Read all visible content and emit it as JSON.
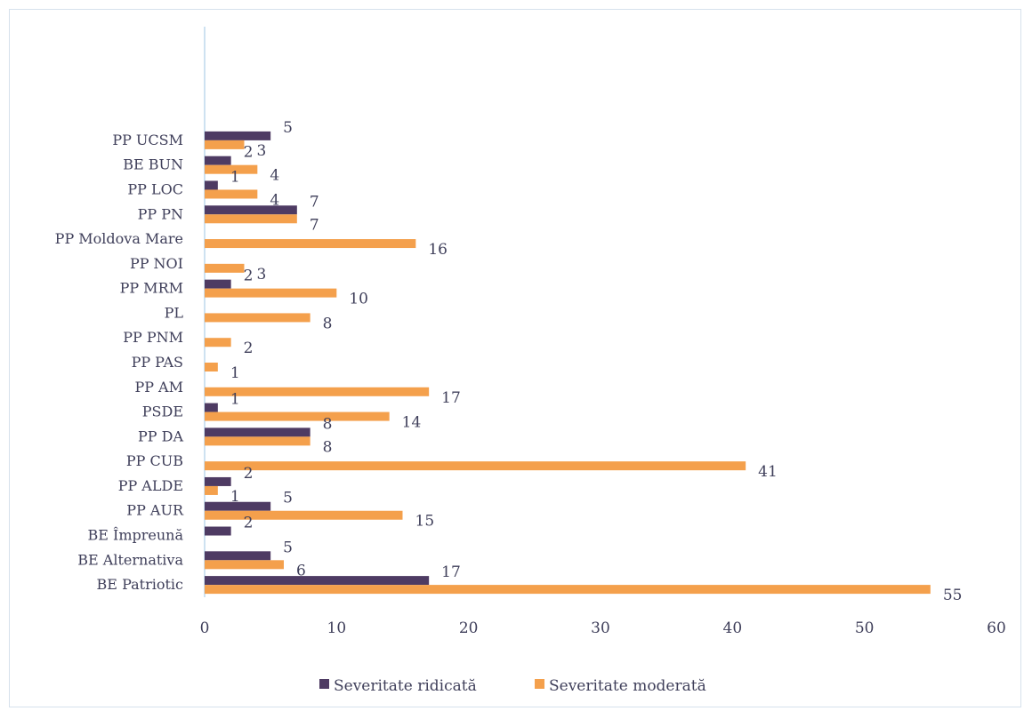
{
  "chart_data": {
    "type": "bar",
    "orientation": "horizontal",
    "categories": [
      "BE Patriotic",
      "BE Alternativa",
      "BE Împreună",
      "PP AUR",
      "PP ALDE",
      "PP CUB",
      "PP DA",
      "PSDE",
      "PP AM",
      "PP PAS",
      "PP PNM",
      "PL",
      "PP MRM",
      "PP NOI",
      "PP Moldova Mare",
      "PP PN",
      "PP LOC",
      "BE BUN",
      "PP UCSM"
    ],
    "series": [
      {
        "name": "Severitate ridicată",
        "color": "#4e3b63",
        "values": [
          17,
          5,
          2,
          5,
          2,
          null,
          8,
          1,
          null,
          null,
          null,
          null,
          2,
          null,
          null,
          7,
          1,
          2,
          5
        ]
      },
      {
        "name": "Severitate moderată",
        "color": "#f4a04c",
        "values": [
          55,
          6,
          null,
          15,
          1,
          41,
          8,
          14,
          17,
          1,
          2,
          8,
          10,
          3,
          16,
          7,
          4,
          4,
          3
        ]
      }
    ],
    "x_ticks": [
      "0",
      "10",
      "20",
      "30",
      "40",
      "50",
      "60"
    ],
    "xlim": [
      0,
      60
    ],
    "legend_position": "bottom",
    "grid": false
  }
}
